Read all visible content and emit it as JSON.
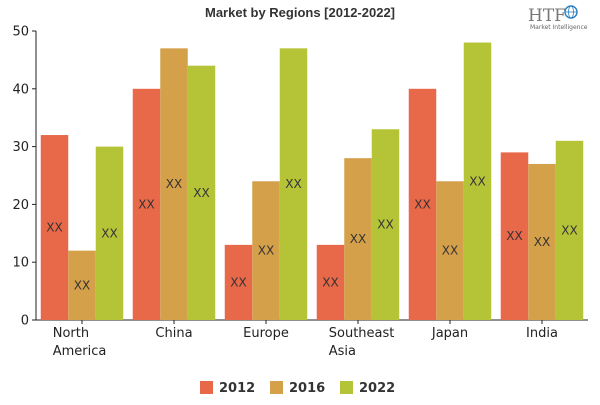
{
  "logo": {
    "mark": "HTF",
    "subtitle": "Market Intelligence",
    "icon": "globe-icon",
    "color": "#2a7fc0"
  },
  "chart_data": {
    "type": "bar",
    "title": "Market by Regions [2012-2022]",
    "categories": [
      [
        "North",
        "America"
      ],
      [
        "China"
      ],
      [
        "Europe"
      ],
      [
        "Southeast",
        "Asia"
      ],
      [
        "Japan"
      ],
      [
        "India"
      ]
    ],
    "series": [
      {
        "name": "2012",
        "color": "#e8684a",
        "values": [
          32,
          40,
          13,
          13,
          40,
          29
        ]
      },
      {
        "name": "2016",
        "color": "#d4a04a",
        "values": [
          12,
          47,
          24,
          28,
          24,
          27
        ]
      },
      {
        "name": "2022",
        "color": "#b5c437",
        "values": [
          30,
          44,
          47,
          33,
          48,
          31
        ]
      }
    ],
    "data_label": "XX",
    "ylim": [
      0,
      50
    ],
    "yticks": [
      0,
      10,
      20,
      30,
      40,
      50
    ],
    "xlabel": "",
    "ylabel": "",
    "grid": false,
    "legend": "bottom"
  }
}
